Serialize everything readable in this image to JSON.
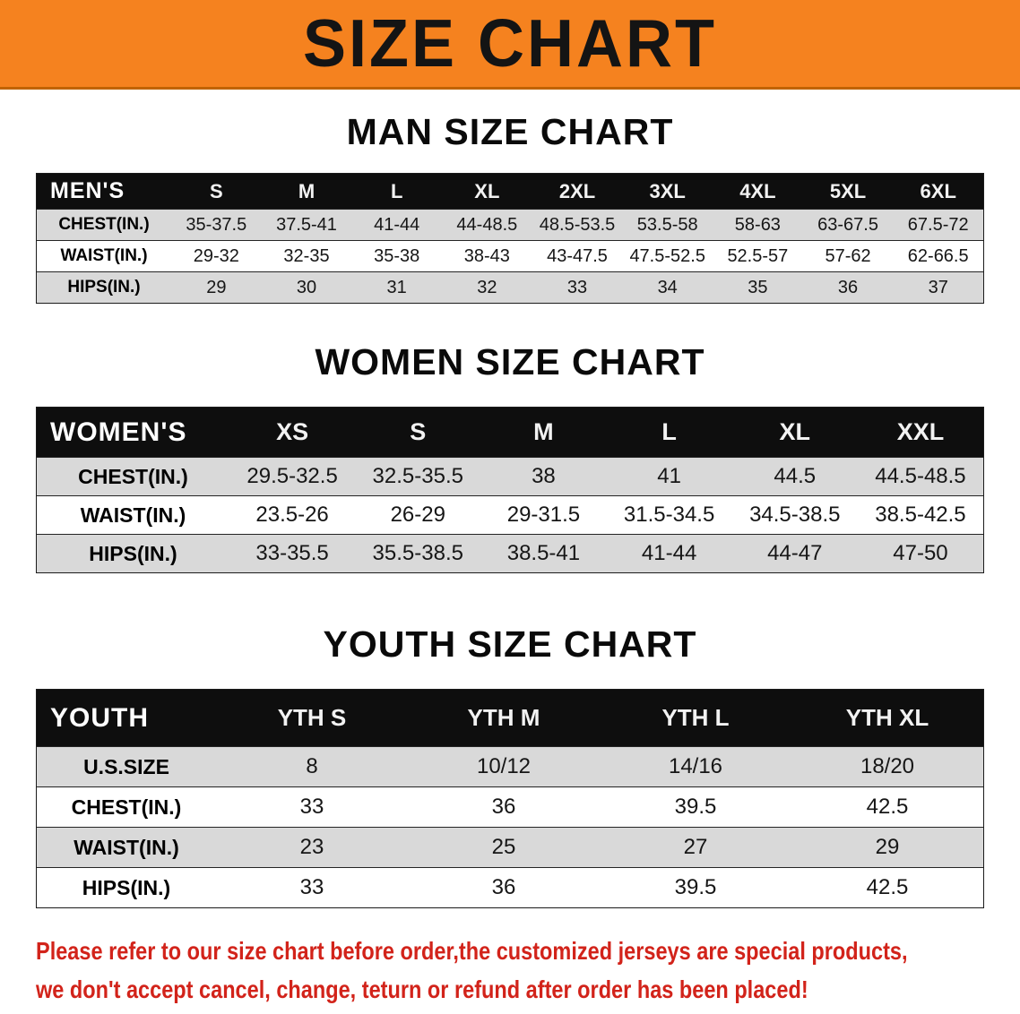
{
  "banner": {
    "title": "SIZE CHART"
  },
  "man": {
    "heading": "MAN SIZE CHART",
    "label": "MEN'S",
    "columns": [
      "S",
      "M",
      "L",
      "XL",
      "2XL",
      "3XL",
      "4XL",
      "5XL",
      "6XL"
    ],
    "rows": [
      {
        "label": "CHEST(IN.)",
        "values": [
          "35-37.5",
          "37.5-41",
          "41-44",
          "44-48.5",
          "48.5-53.5",
          "53.5-58",
          "58-63",
          "63-67.5",
          "67.5-72"
        ]
      },
      {
        "label": "WAIST(IN.)",
        "values": [
          "29-32",
          "32-35",
          "35-38",
          "38-43",
          "43-47.5",
          "47.5-52.5",
          "52.5-57",
          "57-62",
          "62-66.5"
        ]
      },
      {
        "label": "HIPS(IN.)",
        "values": [
          "29",
          "30",
          "31",
          "32",
          "33",
          "34",
          "35",
          "36",
          "37"
        ]
      }
    ]
  },
  "women": {
    "heading": "WOMEN SIZE CHART",
    "label": "WOMEN'S",
    "columns": [
      "XS",
      "S",
      "M",
      "L",
      "XL",
      "XXL"
    ],
    "rows": [
      {
        "label": "CHEST(IN.)",
        "values": [
          "29.5-32.5",
          "32.5-35.5",
          "38",
          "41",
          "44.5",
          "44.5-48.5"
        ]
      },
      {
        "label": "WAIST(IN.)",
        "values": [
          "23.5-26",
          "26-29",
          "29-31.5",
          "31.5-34.5",
          "34.5-38.5",
          "38.5-42.5"
        ]
      },
      {
        "label": "HIPS(IN.)",
        "values": [
          "33-35.5",
          "35.5-38.5",
          "38.5-41",
          "41-44",
          "44-47",
          "47-50"
        ]
      }
    ]
  },
  "youth": {
    "heading": "YOUTH SIZE CHART",
    "label": "YOUTH",
    "columns": [
      "YTH S",
      "YTH M",
      "YTH L",
      "YTH XL"
    ],
    "rows": [
      {
        "label": "U.S.SIZE",
        "values": [
          "8",
          "10/12",
          "14/16",
          "18/20"
        ]
      },
      {
        "label": "CHEST(IN.)",
        "values": [
          "33",
          "36",
          "39.5",
          "42.5"
        ]
      },
      {
        "label": "WAIST(IN.)",
        "values": [
          "23",
          "25",
          "27",
          "29"
        ]
      },
      {
        "label": "HIPS(IN.)",
        "values": [
          "33",
          "36",
          "39.5",
          "42.5"
        ]
      }
    ]
  },
  "disclaimer": {
    "line1": "Please refer to our size chart before order,the customized jerseys are special products,",
    "line2": "we don't accept cancel, change, teturn or refund after order has been placed!"
  },
  "colors": {
    "banner_bg": "#F5821F",
    "table_header_bg": "#0E0E0E",
    "row_alt_bg": "#D9D9D9",
    "disclaimer_text": "#D2231A"
  }
}
